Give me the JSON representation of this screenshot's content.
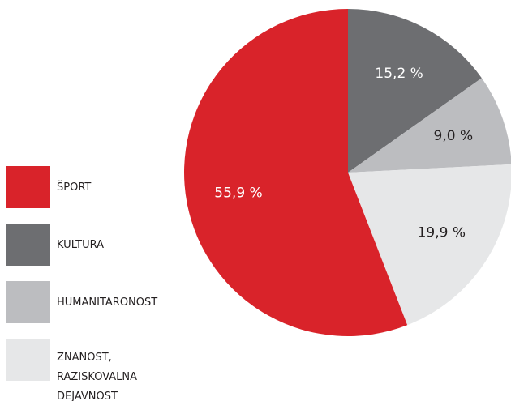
{
  "chart_data": {
    "type": "pie",
    "categories": [
      "ŠPORT",
      "KULTURA",
      "HUMANITARONOST",
      "ZNANOST, RAZISKOVALNA DEJAVNOST"
    ],
    "values": [
      55.9,
      15.2,
      9.0,
      19.9
    ],
    "value_labels": [
      "55,9 %",
      "15,2 %",
      "9,0 %",
      "19,9 %"
    ],
    "colors": [
      "#d9232a",
      "#6d6e71",
      "#bcbdc0",
      "#e6e7e8"
    ],
    "legend": "left"
  }
}
